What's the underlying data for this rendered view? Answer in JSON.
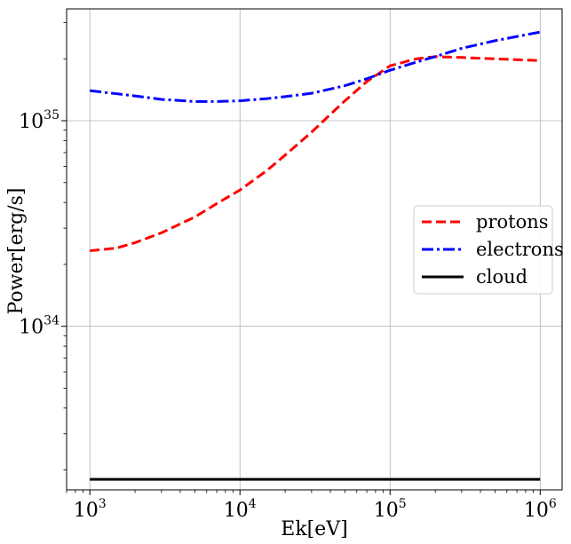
{
  "chart_data": {
    "type": "line",
    "title": "",
    "xlabel": "Ek[eV]",
    "ylabel": "Power[erg/s]",
    "xscale": "log",
    "yscale": "log",
    "xlim": [
      700,
      1400000
    ],
    "ylim": [
      1.6e+33,
      3.5e+35
    ],
    "grid": true,
    "legend_position": "center-right",
    "x_ticks": [
      {
        "base": "10",
        "exp": "3",
        "value": 1000
      },
      {
        "base": "10",
        "exp": "4",
        "value": 10000
      },
      {
        "base": "10",
        "exp": "5",
        "value": 100000
      },
      {
        "base": "10",
        "exp": "6",
        "value": 1000000
      }
    ],
    "y_ticks": [
      {
        "base": "10",
        "exp": "34",
        "value": 1e+34
      },
      {
        "base": "10",
        "exp": "35",
        "value": 1e+35
      }
    ],
    "series": [
      {
        "name": "protons",
        "color": "#ff0000",
        "style": "dashed",
        "x": [
          1000,
          1500,
          2000,
          3000,
          5000,
          7000,
          10000,
          15000,
          20000,
          30000,
          50000,
          70000,
          100000,
          150000,
          200000,
          300000,
          500000,
          1000000
        ],
        "y": [
          2.33e+34,
          2.4e+34,
          2.55e+34,
          2.85e+34,
          3.4e+34,
          3.95e+34,
          4.6e+34,
          5.7e+34,
          6.8e+34,
          8.8e+34,
          1.25e+35,
          1.55e+35,
          1.85e+35,
          2e+35,
          2.05e+35,
          2.03e+35,
          2e+35,
          1.96e+35
        ]
      },
      {
        "name": "electrons",
        "color": "#0000ff",
        "style": "dashdot",
        "x": [
          1000,
          2000,
          3000,
          5000,
          7000,
          10000,
          15000,
          20000,
          30000,
          50000,
          70000,
          100000,
          150000,
          200000,
          300000,
          500000,
          1000000
        ],
        "y": [
          1.4e+35,
          1.32e+35,
          1.27e+35,
          1.24e+35,
          1.24e+35,
          1.25e+35,
          1.28e+35,
          1.31e+35,
          1.36e+35,
          1.48e+35,
          1.6e+35,
          1.76e+35,
          1.93e+35,
          2.05e+35,
          2.25e+35,
          2.45e+35,
          2.7e+35
        ]
      },
      {
        "name": "cloud",
        "color": "#000000",
        "style": "solid",
        "x": [
          1000,
          1000000
        ],
        "y": [
          1.8e+33,
          1.8e+33
        ]
      }
    ]
  }
}
